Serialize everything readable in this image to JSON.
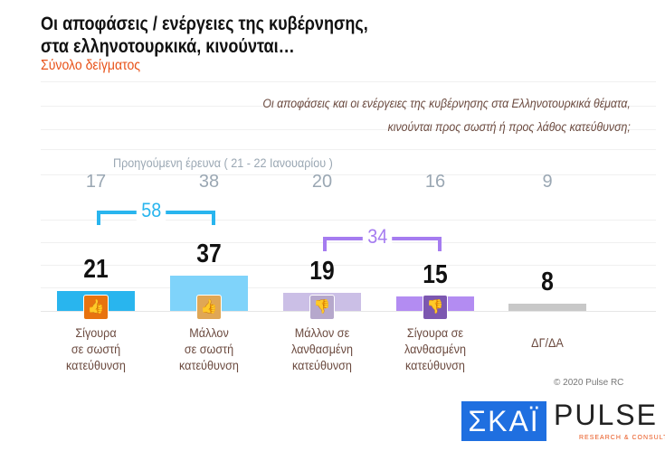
{
  "header": {
    "title_line1": "Οι αποφάσεις / ενέργειες της κυβέρνησης,",
    "title_line2": "στα ελληνοτουρκικά, κινούνται…",
    "subtitle": "Σύνολο δείγματος"
  },
  "question": {
    "line1": "Οι αποφάσεις και οι ενέργειες της κυβέρνησης στα Ελληνοτουρκικά θέματα,",
    "line2": "κινούνται προς σωστή ή προς λάθος κατεύθυνση;"
  },
  "chart_data": {
    "type": "bar",
    "categories": [
      "Σίγουρα σε σωστή κατεύθυνση",
      "Μάλλον σε σωστή κατεύθυνση",
      "Μάλλον σε λανθασμένη κατεύθυνση",
      "Σίγουρα σε λανθασμένη κατεύθυνση",
      "ΔΓ/ΔΑ"
    ],
    "category_lines": [
      [
        "Σίγουρα",
        "σε σωστή",
        "κατεύθυνση"
      ],
      [
        "Μάλλον",
        "σε σωστή",
        "κατεύθυνση"
      ],
      [
        "Μάλλον σε",
        "λανθασμένη",
        "κατεύθυνση"
      ],
      [
        "Σίγουρα σε",
        "λανθασμένη",
        "κατεύθυνση"
      ],
      [
        "ΔΓ/ΔΑ"
      ]
    ],
    "values": [
      21,
      37,
      19,
      15,
      8
    ],
    "previous_label": "Προηγούμενη έρευνα  ( 21 - 22 Ιανουαρίου )",
    "previous_values": [
      17,
      38,
      20,
      16,
      9
    ],
    "colors": [
      "#29b5ee",
      "#7fd3fa",
      "#cbbfe6",
      "#b38cf2",
      "#c8c8c8"
    ],
    "icons": [
      "double-thumbs-up",
      "thumbs-up",
      "thumbs-down",
      "double-thumbs-down",
      ""
    ],
    "icon_colors": [
      "#e8730f",
      "#e0a755",
      "#b6a8cc",
      "#7c57b0"
    ],
    "groups": [
      {
        "label": "58",
        "color": "#29b5ee"
      },
      {
        "label": "34",
        "color": "#a57cf0"
      }
    ]
  },
  "footer": {
    "copyright": "© 2020 Pulse RC",
    "skai_logo": "ΣΚΑΪ",
    "pulse_logo": "PULSE",
    "pulse_sub": "RESEARCH & CONSULTING"
  }
}
